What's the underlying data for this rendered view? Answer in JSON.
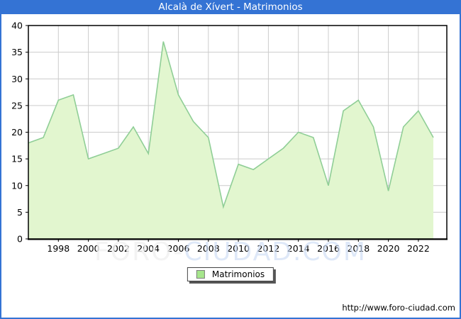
{
  "title": "Alcalà de Xívert - Matrimonios",
  "legend": {
    "label": "Matrimonios"
  },
  "watermark": {
    "part1": "FORO-",
    "part2": "CIUDAD.COM"
  },
  "footer": {
    "url": "http://www.foro-ciudad.com"
  },
  "colors": {
    "titlebar_bg": "#3473D4",
    "title_text": "#FFFFFF",
    "border": "#3473D4",
    "area_fill": "#E2F6CF",
    "line": "#8FCE96",
    "gridline": "#CCCCCC",
    "plot_border": "#000000",
    "text": "#000000",
    "legend_swatch_fill": "#A6E68C",
    "legend_swatch_border": "#7E7E7E",
    "watermark_gray": "rgba(240,240,240,0.8)",
    "watermark_blue": "rgba(205,220,244,0.65)"
  },
  "chart_data": {
    "type": "area",
    "title": "Alcalà de Xívert - Matrimonios",
    "series_name": "Matrimonios",
    "x": [
      1996,
      1997,
      1998,
      1999,
      2000,
      2001,
      2002,
      2003,
      2004,
      2005,
      2006,
      2007,
      2008,
      2009,
      2010,
      2011,
      2012,
      2013,
      2014,
      2015,
      2016,
      2017,
      2018,
      2019,
      2020,
      2021,
      2022,
      2023
    ],
    "values": [
      18,
      19,
      26,
      27,
      15,
      16,
      17,
      21,
      16,
      37,
      27,
      22,
      19,
      6,
      14,
      13,
      15,
      17,
      20,
      19,
      10,
      24,
      26,
      21,
      9,
      21,
      24,
      19
    ],
    "xticks": [
      1998,
      2000,
      2002,
      2004,
      2006,
      2008,
      2010,
      2012,
      2014,
      2016,
      2018,
      2020,
      2022
    ],
    "ylim": [
      0,
      40
    ],
    "ytick_step": 5,
    "xlabel": "",
    "ylabel": "",
    "grid": true,
    "legend_position": "bottom-center"
  }
}
